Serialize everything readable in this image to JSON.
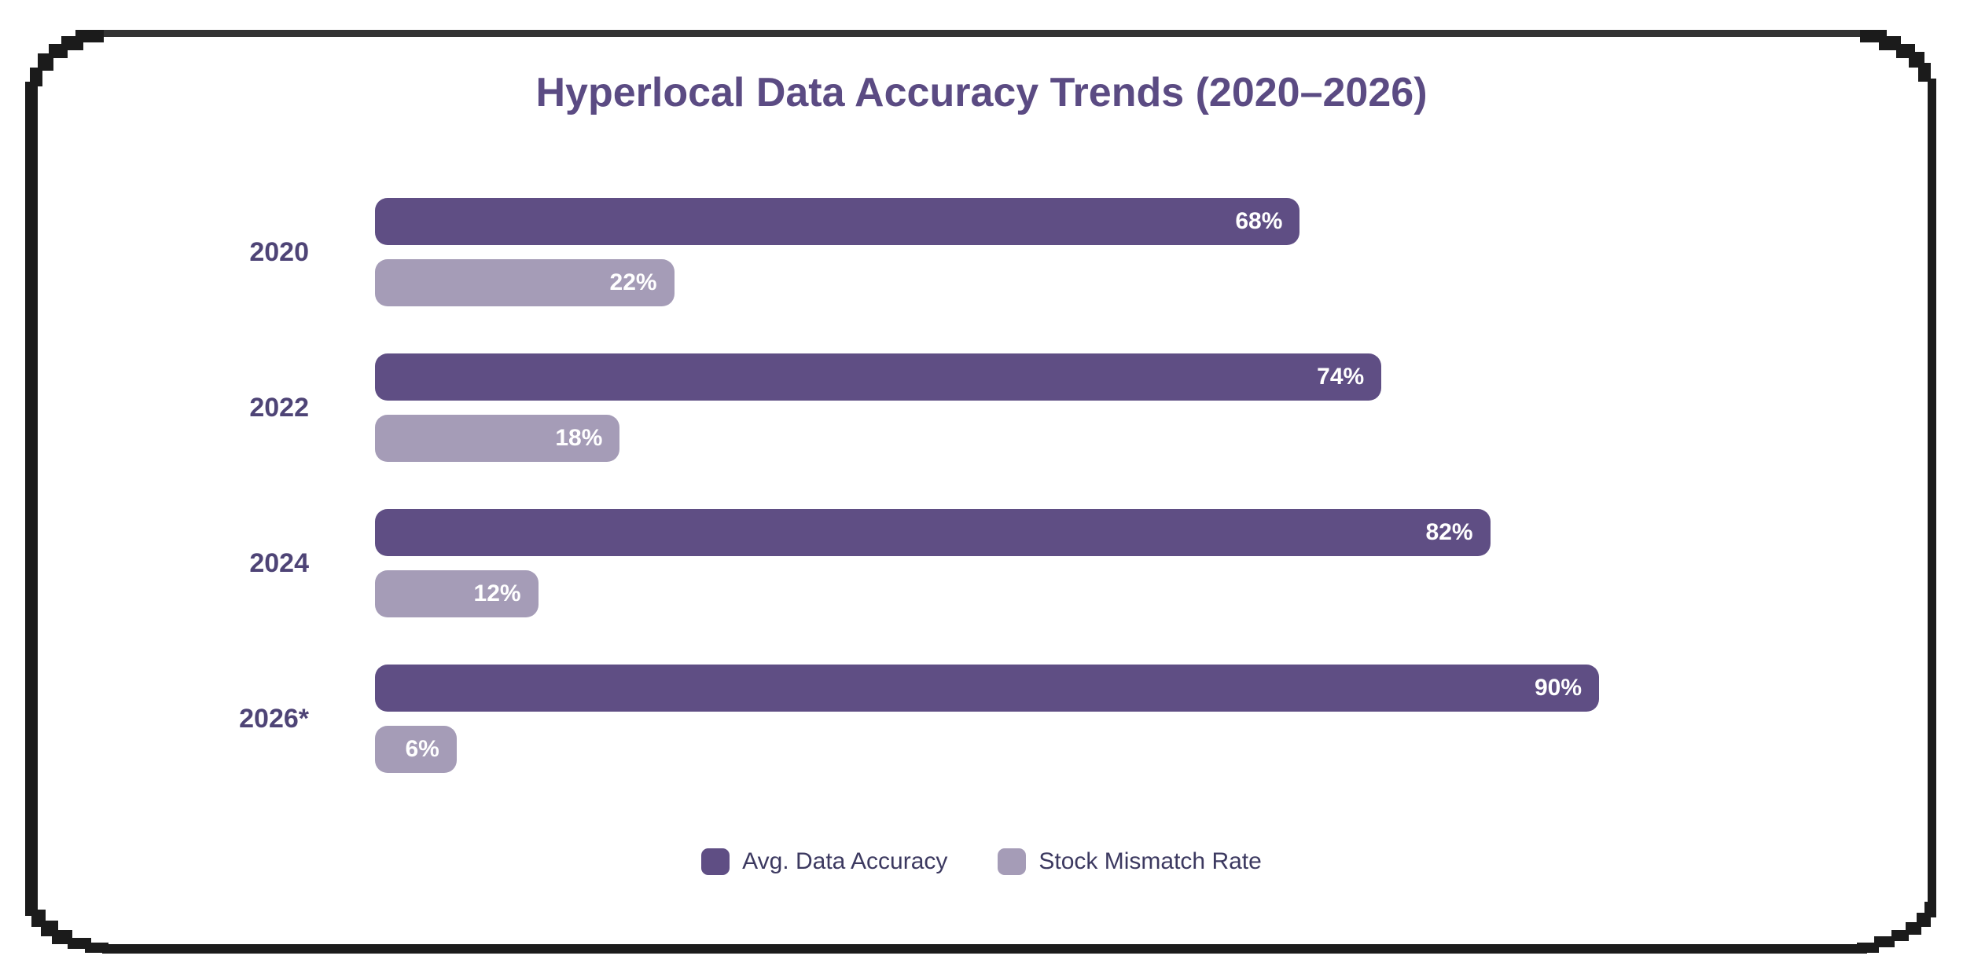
{
  "title": "Hyperlocal Data Accuracy Trends (2020–2026)",
  "colors": {
    "accuracy_bar": "#5f4e84",
    "mismatch_bar": "#a59cb7",
    "title_text": "#5b4b83",
    "category_text": "#4e4476",
    "legend_text": "#3c3960",
    "bar_value_text": "#ffffff",
    "frame": "#1b1b1b",
    "background": "#ffffff"
  },
  "chart_data": {
    "type": "bar",
    "orientation": "horizontal",
    "title": "Hyperlocal Data Accuracy Trends (2020–2026)",
    "categories": [
      "2020",
      "2022",
      "2024",
      "2026*"
    ],
    "series": [
      {
        "name": "Avg. Data Accuracy",
        "color": "#5f4e84",
        "values": [
          68,
          74,
          82,
          90
        ],
        "labels": [
          "68%",
          "74%",
          "82%",
          "90%"
        ]
      },
      {
        "name": "Stock Mismatch Rate",
        "color": "#a59cb7",
        "values": [
          22,
          18,
          12,
          6
        ],
        "labels": [
          "22%",
          "18%",
          "12%",
          "6%"
        ]
      }
    ],
    "xlim": [
      0,
      100
    ],
    "value_format": "percent",
    "grid": false,
    "legend_position": "bottom"
  },
  "legend": {
    "items": [
      {
        "label": "Avg. Data Accuracy",
        "color": "#5f4e84"
      },
      {
        "label": "Stock Mismatch Rate",
        "color": "#a59cb7"
      }
    ]
  }
}
